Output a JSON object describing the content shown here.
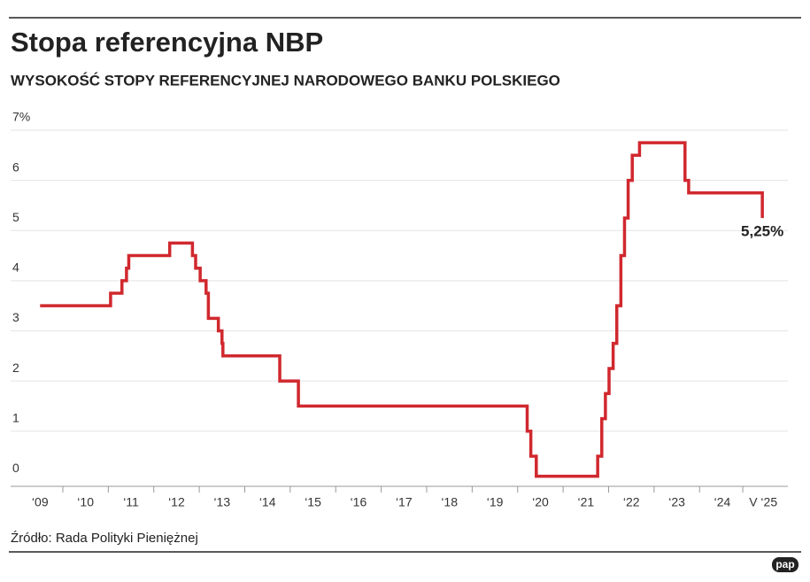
{
  "chart_data": {
    "type": "step",
    "title": "Stopa referencyjna NBP",
    "subtitle": "WYSOKOŚĆ STOPY REFERENCYJNEJ NARODOWEGO BANKU POLSKIEGO",
    "source": "Źródło: Rada Polityki Pieniężnej",
    "logo": "pap",
    "annotation": "5,25%",
    "color": "#d0282e",
    "grid": true,
    "x": [
      2009.5,
      2011.05,
      2011.3,
      2011.4,
      2011.45,
      2012.35,
      2012.85,
      2012.92,
      2013.02,
      2013.15,
      2013.2,
      2013.42,
      2013.5,
      2013.52,
      2014.77,
      2015.18,
      2020.21,
      2020.29,
      2020.41,
      2021.76,
      2021.85,
      2021.93,
      2022.01,
      2022.1,
      2022.18,
      2022.27,
      2022.35,
      2022.43,
      2022.52,
      2022.68,
      2023.68,
      2023.76,
      2025.38
    ],
    "values": [
      3.5,
      3.75,
      4.0,
      4.25,
      4.5,
      4.75,
      4.5,
      4.25,
      4.0,
      3.75,
      3.25,
      3.0,
      2.75,
      2.5,
      2.0,
      1.5,
      1.0,
      0.5,
      0.1,
      0.5,
      1.25,
      1.75,
      2.25,
      2.75,
      3.5,
      4.5,
      5.25,
      6.0,
      6.5,
      6.75,
      6.0,
      5.75,
      5.25
    ],
    "xlim": [
      2009.3,
      2026
    ],
    "xticks": [
      {
        "value": 2009.5,
        "label": "‘09"
      },
      {
        "value": 2010.5,
        "label": "‘10"
      },
      {
        "value": 2011.5,
        "label": "‘11"
      },
      {
        "value": 2012.5,
        "label": "‘12"
      },
      {
        "value": 2013.5,
        "label": "‘13"
      },
      {
        "value": 2014.5,
        "label": "‘14"
      },
      {
        "value": 2015.5,
        "label": "‘15"
      },
      {
        "value": 2016.5,
        "label": "‘16"
      },
      {
        "value": 2017.5,
        "label": "‘17"
      },
      {
        "value": 2018.5,
        "label": "‘18"
      },
      {
        "value": 2019.5,
        "label": "‘19"
      },
      {
        "value": 2020.5,
        "label": "‘20"
      },
      {
        "value": 2021.5,
        "label": "‘21"
      },
      {
        "value": 2022.5,
        "label": "‘22"
      },
      {
        "value": 2023.5,
        "label": "‘23"
      },
      {
        "value": 2024.5,
        "label": "‘24"
      },
      {
        "value": 2025.4,
        "label": "V ‘25"
      }
    ],
    "ylim": [
      -0.1,
      7
    ],
    "yticks": [
      0,
      1,
      2,
      3,
      4,
      5,
      6,
      {
        "value": 7,
        "label": "7%"
      }
    ]
  }
}
